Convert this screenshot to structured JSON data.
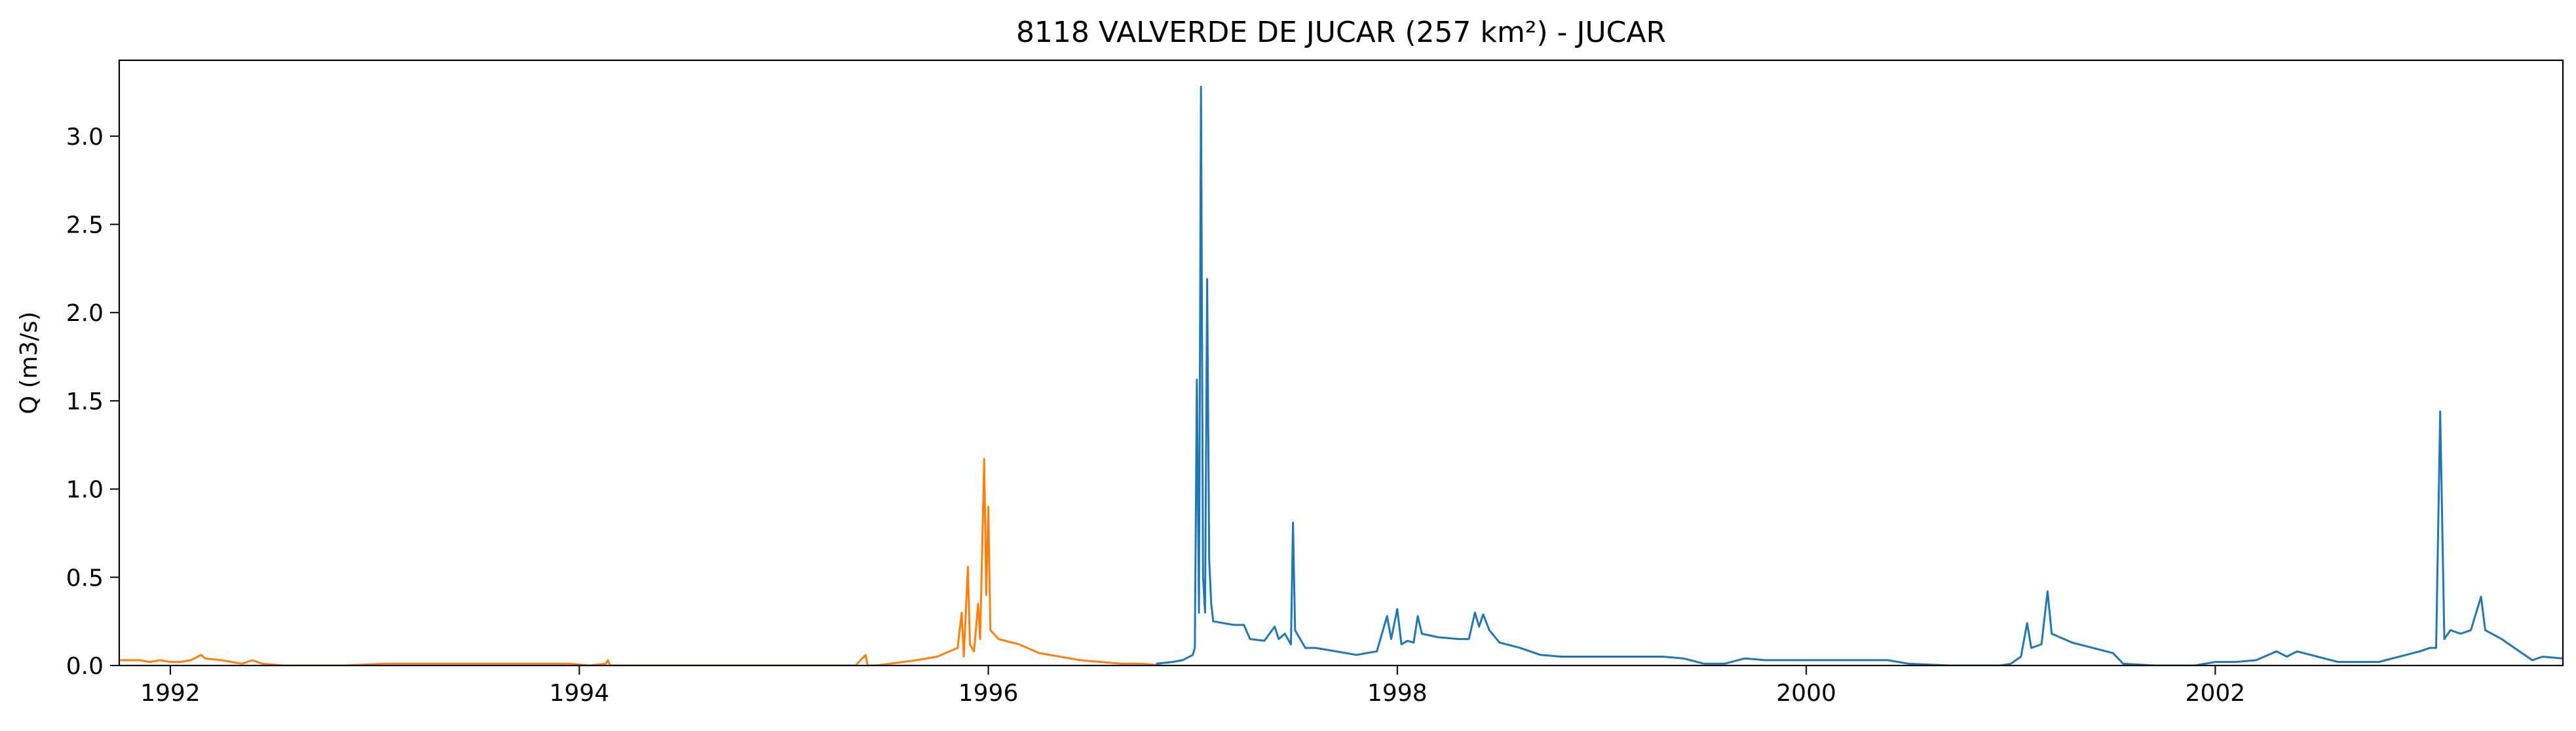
{
  "chart_data": {
    "type": "line",
    "title": "8118 VALVERDE DE JUCAR (257 km²) - JUCAR",
    "xlabel": "",
    "ylabel": "Q (m3/s)",
    "xlim": [
      1991.75,
      2003.7
    ],
    "ylim": [
      0,
      3.43
    ],
    "grid": false,
    "x_ticks": [
      {
        "value": 1992,
        "label": "1992"
      },
      {
        "value": 1994,
        "label": "1994"
      },
      {
        "value": 1996,
        "label": "1996"
      },
      {
        "value": 1998,
        "label": "1998"
      },
      {
        "value": 2000,
        "label": "2000"
      },
      {
        "value": 2002,
        "label": "2002"
      }
    ],
    "y_ticks": [
      {
        "value": 0.0,
        "label": "0.0"
      },
      {
        "value": 0.5,
        "label": "0.5"
      },
      {
        "value": 1.0,
        "label": "1.0"
      },
      {
        "value": 1.5,
        "label": "1.5"
      },
      {
        "value": 2.0,
        "label": "2.0"
      },
      {
        "value": 2.5,
        "label": "2.5"
      },
      {
        "value": 3.0,
        "label": "3.0"
      }
    ],
    "series": [
      {
        "color": "#ff7f0e",
        "points": [
          [
            1991.75,
            0.01
          ],
          [
            1991.9,
            0.03
          ],
          [
            1991.98,
            0.03
          ],
          [
            1992.0,
            0.08
          ],
          [
            1992.02,
            0.09
          ],
          [
            1992.1,
            0.1
          ],
          [
            1992.2,
            0.1
          ],
          [
            1992.3,
            0.11
          ],
          [
            1992.4,
            0.11
          ],
          [
            1992.5,
            0.1
          ],
          [
            1992.6,
            0.1
          ],
          [
            1992.7,
            0.1
          ],
          [
            1992.8,
            0.1
          ],
          [
            1992.9,
            0.1
          ],
          [
            1993.0,
            0.1
          ],
          [
            1993.1,
            0.11
          ],
          [
            1993.2,
            0.12
          ],
          [
            1993.3,
            0.13
          ],
          [
            1993.38,
            0.13
          ],
          [
            1993.4,
            0.02
          ],
          [
            1993.45,
            0.01
          ],
          [
            1993.55,
            0.0
          ],
          [
            1993.6,
            0.01
          ],
          [
            1993.7,
            0.02
          ],
          [
            1993.8,
            0.03
          ],
          [
            1993.9,
            0.03
          ],
          [
            1994.0,
            0.03
          ],
          [
            1994.05,
            0.02
          ],
          [
            1994.1,
            0.03
          ],
          [
            1994.15,
            0.02
          ],
          [
            1994.2,
            0.02
          ],
          [
            1994.25,
            0.03
          ],
          [
            1994.3,
            0.06
          ],
          [
            1994.32,
            0.04
          ],
          [
            1994.4,
            0.03
          ],
          [
            1994.5,
            0.01
          ],
          [
            1994.55,
            0.03
          ],
          [
            1994.6,
            0.01
          ],
          [
            1994.7,
            0.0
          ],
          [
            1994.8,
            0.0
          ],
          [
            1994.9,
            0.0
          ],
          [
            1995.0,
            0.0
          ],
          [
            1995.2,
            0.01
          ],
          [
            1995.4,
            0.01
          ],
          [
            1995.6,
            0.01
          ],
          [
            1995.8,
            0.01
          ],
          [
            1996.0,
            0.01
          ],
          [
            1996.1,
            0.01
          ],
          [
            1996.2,
            0.0
          ],
          [
            1996.28,
            0.01
          ],
          [
            1996.29,
            0.03
          ],
          [
            1996.3,
            0.0
          ],
          [
            1996.4,
            0.0
          ],
          [
            1996.6,
            0.0
          ],
          [
            1996.8,
            0.0
          ],
          [
            1997.0,
            0.0
          ],
          [
            1997.2,
            0.0
          ],
          [
            1997.4,
            0.0
          ],
          [
            1997.5,
            0.0
          ],
          [
            1997.55,
            0.06
          ],
          [
            1997.56,
            0.0
          ],
          [
            1997.6,
            0.0
          ],
          [
            1997.8,
            0.03
          ],
          [
            1997.9,
            0.05
          ],
          [
            1998.0,
            0.1
          ],
          [
            1998.02,
            0.3
          ],
          [
            1998.03,
            0.05
          ],
          [
            1998.05,
            0.56
          ],
          [
            1998.06,
            0.12
          ],
          [
            1998.08,
            0.08
          ],
          [
            1998.1,
            0.35
          ],
          [
            1998.11,
            0.15
          ],
          [
            1998.13,
            1.17
          ],
          [
            1998.14,
            0.4
          ],
          [
            1998.15,
            0.9
          ],
          [
            1998.16,
            0.2
          ],
          [
            1998.2,
            0.15
          ],
          [
            1998.3,
            0.12
          ],
          [
            1998.4,
            0.07
          ],
          [
            1998.5,
            0.05
          ],
          [
            1998.6,
            0.03
          ],
          [
            1998.7,
            0.02
          ],
          [
            1998.8,
            0.01
          ],
          [
            1998.9,
            0.01
          ],
          [
            1999.0,
            0.0
          ]
        ],
        "x_offset_years": -2.15
      },
      {
        "color": "#1f77b4",
        "points": [
          [
            1996.82,
            0.01
          ],
          [
            1996.9,
            0.02
          ],
          [
            1996.95,
            0.03
          ],
          [
            1997.0,
            0.06
          ],
          [
            1997.01,
            0.1
          ],
          [
            1997.02,
            1.62
          ],
          [
            1997.03,
            0.3
          ],
          [
            1997.04,
            3.28
          ],
          [
            1997.05,
            0.5
          ],
          [
            1997.06,
            0.3
          ],
          [
            1997.07,
            2.19
          ],
          [
            1997.08,
            0.6
          ],
          [
            1997.09,
            0.35
          ],
          [
            1997.1,
            0.25
          ],
          [
            1997.2,
            0.23
          ],
          [
            1997.25,
            0.23
          ],
          [
            1997.28,
            0.15
          ],
          [
            1997.35,
            0.14
          ],
          [
            1997.4,
            0.22
          ],
          [
            1997.42,
            0.15
          ],
          [
            1997.45,
            0.18
          ],
          [
            1997.48,
            0.12
          ],
          [
            1997.49,
            0.81
          ],
          [
            1997.5,
            0.2
          ],
          [
            1997.55,
            0.1
          ],
          [
            1997.6,
            0.1
          ],
          [
            1997.7,
            0.08
          ],
          [
            1997.8,
            0.06
          ],
          [
            1997.9,
            0.08
          ],
          [
            1997.95,
            0.28
          ],
          [
            1997.97,
            0.15
          ],
          [
            1998.0,
            0.32
          ],
          [
            1998.02,
            0.12
          ],
          [
            1998.05,
            0.14
          ],
          [
            1998.08,
            0.13
          ],
          [
            1998.1,
            0.28
          ],
          [
            1998.12,
            0.18
          ],
          [
            1998.2,
            0.16
          ],
          [
            1998.3,
            0.15
          ],
          [
            1998.35,
            0.15
          ],
          [
            1998.38,
            0.3
          ],
          [
            1998.4,
            0.22
          ],
          [
            1998.42,
            0.29
          ],
          [
            1998.45,
            0.2
          ],
          [
            1998.5,
            0.13
          ],
          [
            1998.6,
            0.1
          ],
          [
            1998.7,
            0.06
          ],
          [
            1998.8,
            0.05
          ],
          [
            1998.9,
            0.05
          ],
          [
            1999.0,
            0.05
          ],
          [
            1999.2,
            0.05
          ],
          [
            1999.3,
            0.05
          ],
          [
            1999.4,
            0.04
          ],
          [
            1999.5,
            0.01
          ],
          [
            1999.6,
            0.01
          ],
          [
            1999.7,
            0.04
          ],
          [
            1999.8,
            0.03
          ],
          [
            2000.0,
            0.03
          ],
          [
            2000.1,
            0.03
          ],
          [
            2000.3,
            0.03
          ],
          [
            2000.4,
            0.03
          ],
          [
            2000.5,
            0.01
          ],
          [
            2000.7,
            0.0
          ],
          [
            2000.8,
            0.0
          ],
          [
            2000.95,
            0.0
          ],
          [
            2001.0,
            0.01
          ],
          [
            2001.05,
            0.05
          ],
          [
            2001.08,
            0.24
          ],
          [
            2001.1,
            0.1
          ],
          [
            2001.15,
            0.12
          ],
          [
            2001.18,
            0.42
          ],
          [
            2001.2,
            0.18
          ],
          [
            2001.3,
            0.13
          ],
          [
            2001.4,
            0.1
          ],
          [
            2001.5,
            0.07
          ],
          [
            2001.55,
            0.01
          ],
          [
            2001.7,
            0.0
          ],
          [
            2001.9,
            0.0
          ],
          [
            2002.0,
            0.02
          ],
          [
            2002.1,
            0.02
          ],
          [
            2002.2,
            0.03
          ],
          [
            2002.3,
            0.08
          ],
          [
            2002.35,
            0.05
          ],
          [
            2002.4,
            0.08
          ],
          [
            2002.5,
            0.05
          ],
          [
            2002.6,
            0.02
          ],
          [
            2002.8,
            0.02
          ],
          [
            2002.9,
            0.05
          ],
          [
            2003.0,
            0.08
          ],
          [
            2003.05,
            0.1
          ],
          [
            2003.08,
            0.1
          ],
          [
            2003.1,
            1.44
          ],
          [
            2003.12,
            0.15
          ],
          [
            2003.15,
            0.2
          ],
          [
            2003.2,
            0.18
          ],
          [
            2003.25,
            0.2
          ],
          [
            2003.3,
            0.39
          ],
          [
            2003.32,
            0.2
          ],
          [
            2003.4,
            0.15
          ],
          [
            2003.5,
            0.07
          ],
          [
            2003.55,
            0.03
          ],
          [
            2003.6,
            0.05
          ],
          [
            2003.7,
            0.04
          ]
        ],
        "x_offset_years": 0
      }
    ]
  }
}
